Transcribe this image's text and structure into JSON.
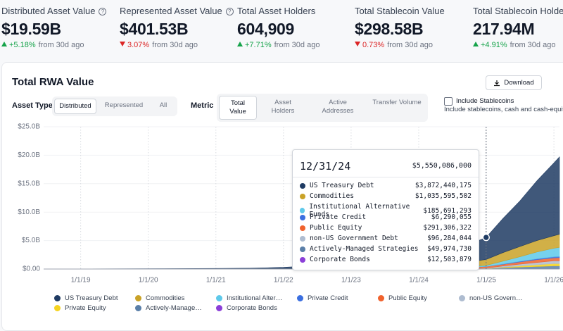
{
  "header": {
    "stats": [
      {
        "label": "Distributed Asset Value",
        "info": true,
        "value": "$19.59B",
        "direction": "up",
        "change": "+5.18%",
        "period": "from 30d ago"
      },
      {
        "label": "Represented Asset Value",
        "info": true,
        "value": "$401.53B",
        "direction": "down",
        "change": "3.07%",
        "period": "from 30d ago"
      },
      {
        "label": "Total Asset Holders",
        "info": false,
        "value": "604,909",
        "direction": "up",
        "change": "+7.71%",
        "period": "from 30d ago"
      },
      {
        "label": "Total Stablecoin Value",
        "info": false,
        "value": "$298.58B",
        "direction": "down",
        "change": "0.73%",
        "period": "from 30d ago"
      },
      {
        "label": "Total Stablecoin Holders",
        "info": false,
        "value": "217.94M",
        "direction": "up",
        "change": "+4.91%",
        "period": "from 30d ago"
      }
    ]
  },
  "panel": {
    "title": "Total RWA Value",
    "download": "Download",
    "asset_type": {
      "label": "Asset Type",
      "options": [
        "Distributed",
        "Represented",
        "All"
      ],
      "selected": 0
    },
    "metric": {
      "label": "Metric",
      "options": [
        "Total Value",
        "Asset Holders",
        "Active Addresses",
        "Transfer Volume"
      ],
      "selected": 0
    },
    "stablecoins": {
      "label": "Include Stablecoins",
      "description": "Include stablecoins, cash and cash-equivalents",
      "checked": false
    }
  },
  "chart_data": {
    "type": "stacked-area",
    "x": [
      "6/15/18",
      "1/1/19",
      "1/1/20",
      "1/1/21",
      "7/1/21",
      "1/1/22",
      "7/1/22",
      "1/1/23",
      "7/1/23",
      "1/1/24",
      "7/1/24",
      "12/31/24",
      "4/1/25",
      "7/1/25",
      "10/1/25",
      "1/1/26",
      "1/31/26"
    ],
    "xlim": [
      "6/15/18",
      "1/31/26"
    ],
    "xticks": [
      "1/1/19",
      "1/1/20",
      "1/1/21",
      "1/1/22",
      "1/1/23",
      "1/1/24",
      "1/1/25",
      "1/1/26"
    ],
    "ylim": [
      0,
      25
    ],
    "yticks": [
      {
        "value": 0,
        "label": "$0.00"
      },
      {
        "value": 5,
        "label": "$5.0B"
      },
      {
        "value": 10,
        "label": "$10.0B"
      },
      {
        "value": 15,
        "label": "$15.0B"
      },
      {
        "value": 20,
        "label": "$20.0B"
      },
      {
        "value": 25,
        "label": "$25.0B"
      }
    ],
    "grid": true,
    "series": [
      {
        "name": "US Treasury Debt",
        "color": "#1f3b63",
        "values": [
          0,
          0.02,
          0.05,
          0.1,
          0.15,
          0.25,
          0.5,
          0.7,
          1.1,
          1.6,
          2.3,
          3.87,
          6.0,
          8.0,
          10.5,
          12.8,
          13.6
        ]
      },
      {
        "name": "Commodities",
        "color": "#c9a227",
        "values": [
          0,
          0,
          0,
          0,
          0,
          0.05,
          0.1,
          0.15,
          0.25,
          0.4,
          0.6,
          1.04,
          1.5,
          1.8,
          2.0,
          2.2,
          2.3
        ]
      },
      {
        "name": "Institutional Alternative Funds",
        "color": "#5ec9ea",
        "values": [
          0,
          0,
          0,
          0,
          0,
          0,
          0,
          0,
          0.02,
          0.05,
          0.1,
          0.19,
          0.5,
          0.8,
          1.2,
          1.5,
          1.6
        ]
      },
      {
        "name": "Private Credit",
        "color": "#3b6fe0",
        "values": [
          0,
          0,
          0,
          0,
          0,
          0,
          0,
          0,
          0,
          0,
          0,
          0.006,
          0.05,
          0.1,
          0.15,
          0.2,
          0.2
        ]
      },
      {
        "name": "Public Equity",
        "color": "#f0622d",
        "values": [
          0,
          0,
          0,
          0,
          0,
          0,
          0,
          0,
          0.01,
          0.05,
          0.1,
          0.29,
          0.3,
          0.4,
          0.5,
          0.5,
          0.55
        ]
      },
      {
        "name": "non-US Government Debt",
        "color": "#aebcd0",
        "values": [
          0,
          0,
          0,
          0,
          0,
          0,
          0,
          0,
          0,
          0,
          0.02,
          0.1,
          0.2,
          0.3,
          0.4,
          0.5,
          0.5
        ]
      },
      {
        "name": "Private Equity",
        "color": "#f5d320",
        "values": [
          0,
          0,
          0,
          0,
          0,
          0,
          0,
          0,
          0,
          0,
          0,
          0,
          0.1,
          0.2,
          0.3,
          0.4,
          0.4
        ]
      },
      {
        "name": "Actively-Managed Strategies",
        "color": "#5a7fa8",
        "values": [
          0,
          0,
          0,
          0,
          0,
          0,
          0,
          0,
          0,
          0,
          0,
          0.05,
          0.2,
          0.3,
          0.4,
          0.5,
          0.5
        ]
      },
      {
        "name": "Corporate Bonds",
        "color": "#8b3fd8",
        "values": [
          0,
          0,
          0,
          0,
          0,
          0,
          0,
          0,
          0,
          0,
          0,
          0.01,
          0.03,
          0.05,
          0.05,
          0.05,
          0.05
        ]
      }
    ],
    "tooltip": {
      "date": "12/31/24",
      "total": {
        "value": 5.550086,
        "label": "$5,550,086,000"
      },
      "rows": [
        {
          "series": 0,
          "value": 3.872440175,
          "label": "$3,872,440,175"
        },
        {
          "series": 1,
          "value": 1.035595502,
          "label": "$1,035,595,502"
        },
        {
          "series": 2,
          "value": 0.185691293,
          "label": "$185,691,293"
        },
        {
          "series": 3,
          "value": 0.006290055,
          "label": "$6,290,055"
        },
        {
          "series": 4,
          "value": 0.291306322,
          "label": "$291,306,322"
        },
        {
          "series": 5,
          "value": 0.096284044,
          "label": "$96,284,044"
        },
        {
          "series": 7,
          "value": 0.04997473,
          "label": "$49,974,730"
        },
        {
          "series": 8,
          "value": 0.012503879,
          "label": "$12,503,879"
        }
      ]
    }
  }
}
